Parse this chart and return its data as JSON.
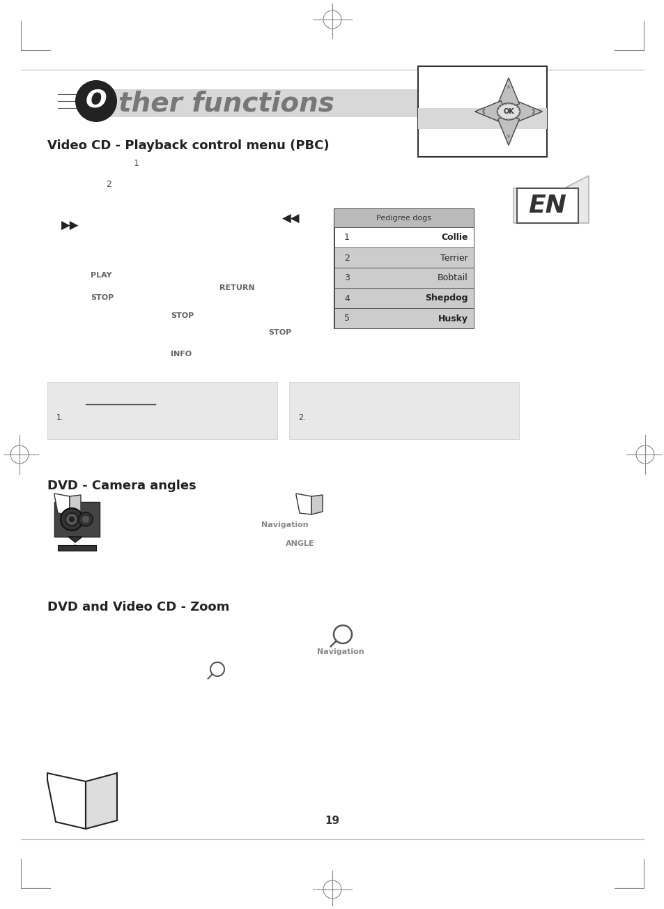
{
  "page_width": 9.54,
  "page_height": 13.04,
  "dpi": 100,
  "bg_color": "#ffffff",
  "section1_title": "Video CD - Playback control menu (PBC)",
  "section2_title": "DVD - Camera angles",
  "section3_title": "DVD and Video CD - Zoom",
  "pedigree_title": "Pedigree dogs",
  "pedigree_items": [
    {
      "num": "1",
      "name": "Collie",
      "bold": true,
      "white_bg": true
    },
    {
      "num": "2",
      "name": "Terrier",
      "bold": false,
      "white_bg": false
    },
    {
      "num": "3",
      "name": "Bobtail",
      "bold": false,
      "white_bg": false
    },
    {
      "num": "4",
      "name": "Shepdog",
      "bold": true,
      "white_bg": false
    },
    {
      "num": "5",
      "name": "Husky",
      "bold": true,
      "white_bg": false
    }
  ],
  "labels_play": "PLAY",
  "labels_stop1": "STOP",
  "labels_stop2": "STOP",
  "labels_stop3": "STOP",
  "labels_return": "RETURN",
  "labels_info": "INFO",
  "labels_navigation1": "Navigation",
  "labels_navigation2": "Navigation",
  "labels_angle": "ANGLE",
  "page_number": "19",
  "border_color": "#888888",
  "light_gray": "#e8e8e8",
  "table_header_bg": "#bbbbbb",
  "table_row_gray": "#cccccc",
  "table_row_white": "#ffffff",
  "label_color": "#666666",
  "section_title_color": "#222222",
  "title_gray_color": "#777777",
  "banner_color": "#d8d8d8"
}
